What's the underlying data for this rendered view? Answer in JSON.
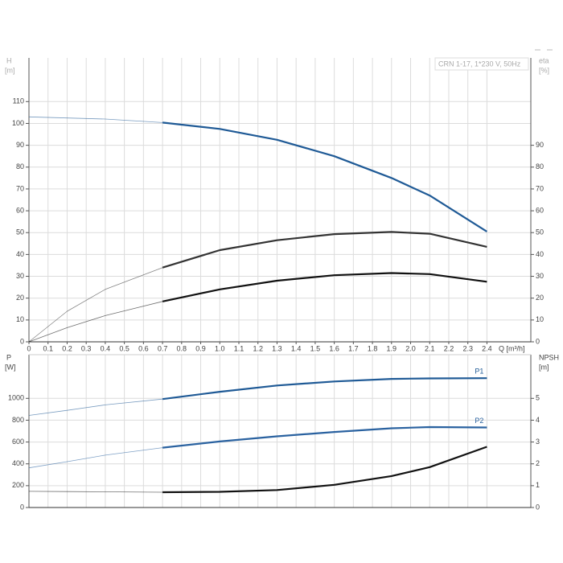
{
  "chart_data": [
    {
      "type": "line",
      "info": "CRN 1-17, 1*230 V, 50Hz",
      "ylabel": "H",
      "yunit": "[m]",
      "y2label": "eta",
      "y2unit": "[%]",
      "xlabel": "Q [m³/h]",
      "x": [
        0,
        0.2,
        0.4,
        0.7,
        1.0,
        1.3,
        1.6,
        1.9,
        2.1,
        2.4
      ],
      "xlim": [
        0,
        2.63
      ],
      "xticks": [
        0,
        0.1,
        0.2,
        0.3,
        0.4,
        0.5,
        0.6,
        0.7,
        0.8,
        0.9,
        {
          "value": 1,
          "label": "1.0"
        },
        1.1,
        1.2,
        1.3,
        1.4,
        1.5,
        1.6,
        1.7,
        1.8,
        1.9,
        {
          "value": 2,
          "label": "2.0"
        },
        2.1,
        2.2,
        2.3,
        2.4
      ],
      "ylim": [
        0,
        130
      ],
      "yticks": [
        0,
        10,
        20,
        30,
        40,
        50,
        60,
        70,
        80,
        90,
        100,
        110
      ],
      "y2lim": [
        0,
        130
      ],
      "y2ticks": [
        0,
        10,
        20,
        30,
        40,
        50,
        60,
        70,
        80,
        90
      ],
      "grid": true,
      "series": [
        {
          "color": "#1f5a96",
          "values": [
            103,
            102.5,
            102,
            100.4,
            97.5,
            92.5,
            85,
            75,
            67,
            50.5
          ]
        },
        {
          "color": "#333333",
          "axis": "y2",
          "values": [
            0,
            14,
            24,
            34,
            42,
            46.5,
            49.3,
            50.3,
            49.5,
            43.5
          ]
        },
        {
          "color": "#111111",
          "axis": "y2",
          "values": [
            0,
            6.5,
            12,
            18.5,
            24,
            28,
            30.5,
            31.5,
            31,
            27.5
          ]
        }
      ]
    },
    {
      "type": "line",
      "ylabel": "P",
      "yunit": "[W]",
      "y2label": "NPSH",
      "y2unit": "[m]",
      "x": [
        0,
        0.2,
        0.4,
        0.7,
        1.0,
        1.3,
        1.6,
        1.9,
        2.1,
        2.4
      ],
      "xlim": [
        0,
        2.63
      ],
      "ylim": [
        0,
        1400
      ],
      "yticks": [
        0,
        200,
        400,
        600,
        800,
        1000
      ],
      "y2lim": [
        0,
        7
      ],
      "y2ticks": [
        0,
        1,
        2,
        3,
        4,
        5
      ],
      "grid": true,
      "series": [
        {
          "name": "P1",
          "color": "#1f5a96",
          "values": [
            844,
            890,
            940,
            993,
            1060,
            1118,
            1155,
            1178,
            1183,
            1185
          ]
        },
        {
          "name": "P2",
          "color": "#2a62a0",
          "values": [
            363,
            420,
            480,
            548,
            605,
            652,
            692,
            726,
            737,
            733
          ]
        },
        {
          "color": "#111111",
          "axis": "y2",
          "values": [
            0.74,
            0.73,
            0.72,
            0.7,
            0.72,
            0.8,
            1.04,
            1.44,
            1.85,
            2.78
          ]
        }
      ]
    }
  ]
}
